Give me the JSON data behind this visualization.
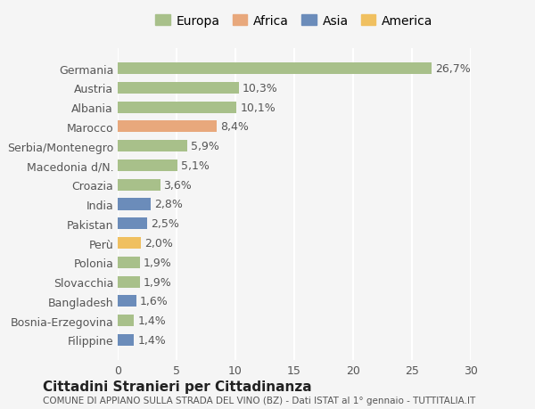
{
  "categories": [
    "Germania",
    "Austria",
    "Albania",
    "Marocco",
    "Serbia/Montenegro",
    "Macedonia d/N.",
    "Croazia",
    "India",
    "Pakistan",
    "Perù",
    "Polonia",
    "Slovacchia",
    "Bangladesh",
    "Bosnia-Erzegovina",
    "Filippine"
  ],
  "values": [
    26.7,
    10.3,
    10.1,
    8.4,
    5.9,
    5.1,
    3.6,
    2.8,
    2.5,
    2.0,
    1.9,
    1.9,
    1.6,
    1.4,
    1.4
  ],
  "labels": [
    "26,7%",
    "10,3%",
    "10,1%",
    "8,4%",
    "5,9%",
    "5,1%",
    "3,6%",
    "2,8%",
    "2,5%",
    "2,0%",
    "1,9%",
    "1,9%",
    "1,6%",
    "1,4%",
    "1,4%"
  ],
  "continents": [
    "Europa",
    "Europa",
    "Europa",
    "Africa",
    "Europa",
    "Europa",
    "Europa",
    "Asia",
    "Asia",
    "America",
    "Europa",
    "Europa",
    "Asia",
    "Europa",
    "Asia"
  ],
  "continent_colors": {
    "Europa": "#a8c08a",
    "Africa": "#e8a87c",
    "Asia": "#6b8cba",
    "America": "#f0c060"
  },
  "legend_order": [
    "Europa",
    "Africa",
    "Asia",
    "America"
  ],
  "xlim": [
    0,
    30
  ],
  "xticks": [
    0,
    5,
    10,
    15,
    20,
    25,
    30
  ],
  "title": "Cittadini Stranieri per Cittadinanza",
  "subtitle": "COMUNE DI APPIANO SULLA STRADA DEL VINO (BZ) - Dati ISTAT al 1° gennaio - TUTTITALIA.IT",
  "bg_color": "#f5f5f5",
  "bar_height": 0.6,
  "grid_color": "#ffffff",
  "label_fontsize": 9,
  "tick_fontsize": 9
}
